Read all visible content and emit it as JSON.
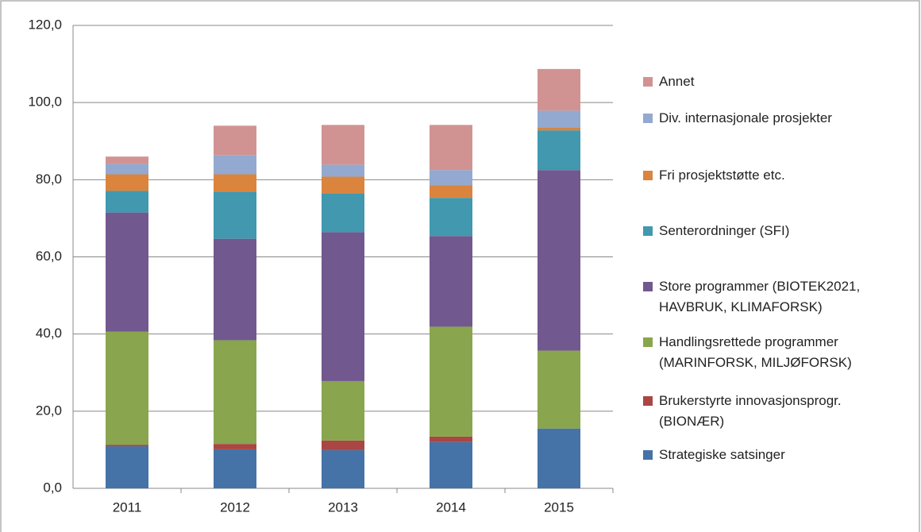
{
  "chart_data": {
    "type": "stacked_bar",
    "categories": [
      "2011",
      "2012",
      "2013",
      "2014",
      "2015"
    ],
    "series": [
      {
        "name": "Strategiske satsinger",
        "color": "#4572a7",
        "values": [
          10.9,
          10.1,
          9.9,
          12.0,
          15.5
        ]
      },
      {
        "name": "Brukerstyrte innovasjonsprogr. (BIONÆR)",
        "color": "#aa4643",
        "values": [
          0.4,
          1.4,
          2.5,
          1.4,
          0
        ]
      },
      {
        "name": "Handlingsrettede programmer (MARINFORSK, MILJØFORSK)",
        "color": "#89a54e",
        "values": [
          29.3,
          26.9,
          15.4,
          28.5,
          20.2
        ]
      },
      {
        "name": "Store programmer (BIOTEK2021, HAVBRUK, KLIMAFORSK)",
        "color": "#71588f",
        "values": [
          30.9,
          26.3,
          38.6,
          23.5,
          46.8
        ]
      },
      {
        "name": "Senterordninger (SFI)",
        "color": "#4198af",
        "values": [
          5.6,
          12.2,
          10.1,
          9.9,
          10.3
        ]
      },
      {
        "name": "Fri prosjektstøtte etc.",
        "color": "#db843d",
        "values": [
          4.3,
          4.5,
          4.3,
          3.3,
          0.8
        ]
      },
      {
        "name": "Div. internasjonale prosjekter",
        "color": "#93a9cf",
        "values": [
          2.7,
          5.0,
          3.1,
          3.9,
          4.3
        ]
      },
      {
        "name": "Annet",
        "color": "#d19392",
        "values": [
          1.9,
          7.6,
          10.3,
          11.7,
          10.8
        ]
      }
    ],
    "ylim": [
      0,
      120
    ],
    "yticks": [
      {
        "value": 0,
        "label": "0,0"
      },
      {
        "value": 20,
        "label": "20,0"
      },
      {
        "value": 40,
        "label": "40,0"
      },
      {
        "value": 60,
        "label": "60,0"
      },
      {
        "value": 80,
        "label": "80,0"
      },
      {
        "value": 100,
        "label": "100,0"
      },
      {
        "value": 120,
        "label": "120,0"
      }
    ],
    "grid": true,
    "legend": "right"
  }
}
